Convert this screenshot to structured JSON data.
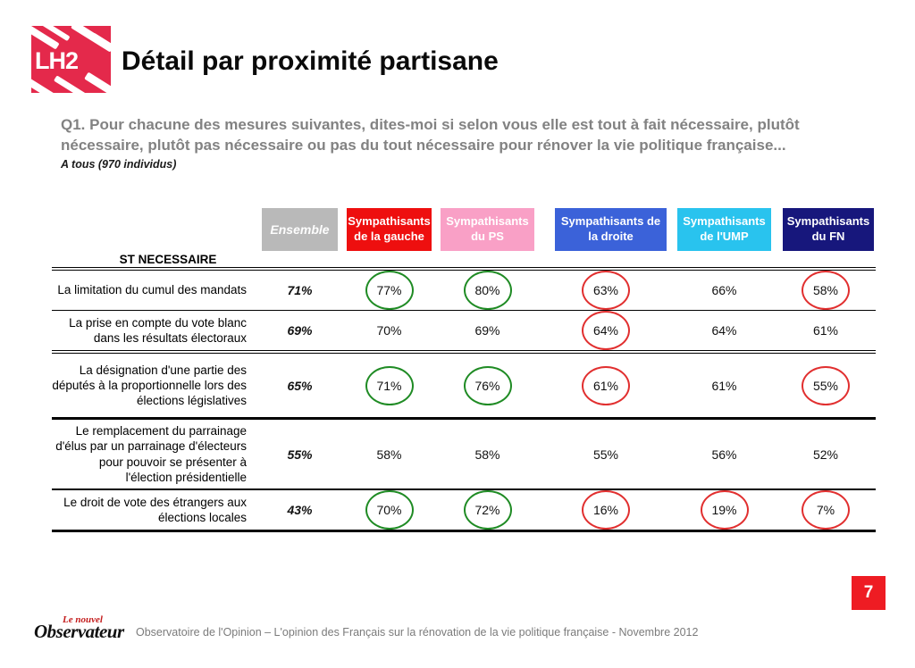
{
  "logo": {
    "text": "LH2"
  },
  "header": {
    "title": "Détail par proximité partisane"
  },
  "question": {
    "text": "Q1. Pour chacune des mesures suivantes, dites-moi si selon vous elle est tout à fait nécessaire, plutôt nécessaire, plutôt pas nécessaire ou pas du tout nécessaire pour rénover la vie politique française...",
    "base": "A tous (970 individus)"
  },
  "colors": {
    "logo_red": "#e4294b",
    "circle_green": "#1f8b24",
    "circle_red": "#e12f2f",
    "page_number_box": "#ee1c23"
  },
  "table": {
    "section_label": "ST NECESSAIRE",
    "columns": [
      {
        "line1": "Ensemble",
        "line2": "",
        "color": "#b9b9b9"
      },
      {
        "line1": "Sympathisants",
        "line2": "de la gauche",
        "color": "#ee0f0f"
      },
      {
        "line1": "Sympathisants",
        "line2": "du PS",
        "color": "#f9a0c6"
      },
      {
        "line1": "Sympathisants de",
        "line2": "la droite",
        "color": "#3b62d9"
      },
      {
        "line1": "Sympathisants",
        "line2": "de l'UMP",
        "color": "#29c3ee"
      },
      {
        "line1": "Sympathisants",
        "line2": "du FN",
        "color": "#17177c"
      }
    ],
    "rows": [
      {
        "label": "La limitation du cumul des mandats",
        "ensemble": "71%",
        "values": [
          {
            "text": "77%",
            "circle": "green"
          },
          {
            "text": "80%",
            "circle": "green"
          },
          {
            "text": "63%",
            "circle": "red"
          },
          {
            "text": "66%",
            "circle": "none"
          },
          {
            "text": "58%",
            "circle": "red"
          }
        ]
      },
      {
        "label": "La prise en compte du vote blanc dans les résultats électoraux",
        "ensemble": "69%",
        "values": [
          {
            "text": "70%",
            "circle": "none"
          },
          {
            "text": "69%",
            "circle": "none"
          },
          {
            "text": "64%",
            "circle": "red"
          },
          {
            "text": "64%",
            "circle": "none"
          },
          {
            "text": "61%",
            "circle": "none"
          }
        ]
      },
      {
        "label": "La désignation d'une partie des députés à la proportionnelle lors des élections législatives",
        "ensemble": "65%",
        "values": [
          {
            "text": "71%",
            "circle": "green"
          },
          {
            "text": "76%",
            "circle": "green"
          },
          {
            "text": "61%",
            "circle": "red"
          },
          {
            "text": "61%",
            "circle": "none"
          },
          {
            "text": "55%",
            "circle": "red"
          }
        ]
      },
      {
        "label": "Le remplacement du parrainage d'élus par un parrainage d'électeurs pour pouvoir se présenter à l'élection présidentielle",
        "ensemble": "55%",
        "values": [
          {
            "text": "58%",
            "circle": "none"
          },
          {
            "text": "58%",
            "circle": "none"
          },
          {
            "text": "55%",
            "circle": "none"
          },
          {
            "text": "56%",
            "circle": "none"
          },
          {
            "text": "52%",
            "circle": "none"
          }
        ]
      },
      {
        "label": "Le droit de vote des étrangers aux élections locales",
        "ensemble": "43%",
        "values": [
          {
            "text": "70%",
            "circle": "green"
          },
          {
            "text": "72%",
            "circle": "green"
          },
          {
            "text": "16%",
            "circle": "red"
          },
          {
            "text": "19%",
            "circle": "red"
          },
          {
            "text": "7%",
            "circle": "red"
          }
        ]
      }
    ]
  },
  "footer": {
    "brand_top": "Le nouvel",
    "brand_bottom": "Observateur",
    "text": "Observatoire de l'Opinion – L'opinion des Français sur la rénovation de la vie politique française - Novembre 2012",
    "page_number": "7"
  }
}
